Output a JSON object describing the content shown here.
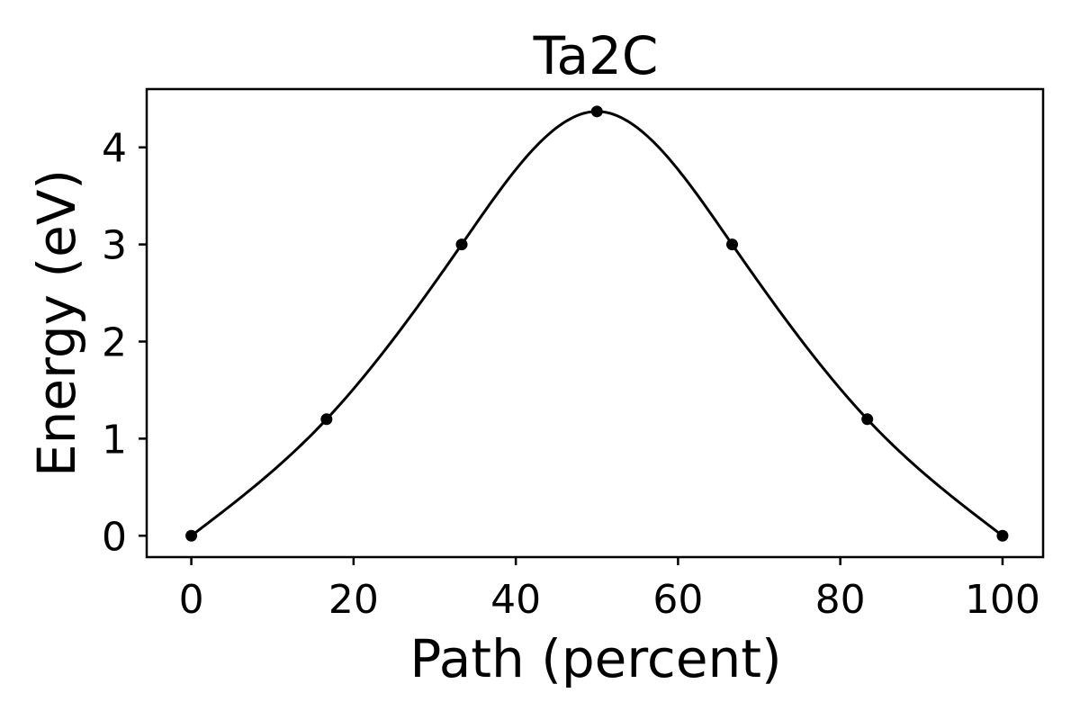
{
  "chart_data": {
    "type": "line",
    "title": "Ta2C",
    "xlabel": "Path (percent)",
    "ylabel": "Energy (eV)",
    "xlim": [
      -5.5,
      105
    ],
    "ylim": [
      -0.22,
      4.6
    ],
    "xticks": [
      0,
      20,
      40,
      60,
      80,
      100
    ],
    "yticks": [
      0,
      1,
      2,
      3,
      4
    ],
    "grid": false,
    "legend": "none",
    "line_color": "#000000",
    "marker_color": "#000000",
    "series": [
      {
        "x": [
          0,
          16.67,
          33.33,
          50,
          66.67,
          83.33,
          100
        ],
        "y": [
          0.0,
          1.2,
          3.0,
          4.37,
          3.0,
          1.2,
          0.0
        ]
      }
    ]
  }
}
